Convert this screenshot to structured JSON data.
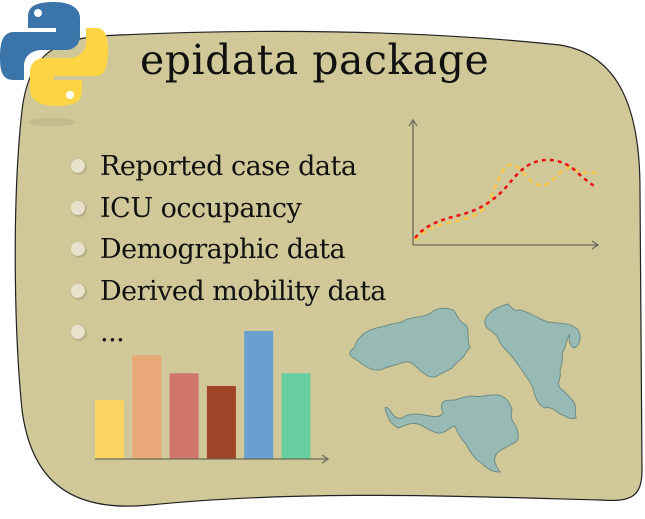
{
  "title": "epidata package",
  "items": [
    {
      "label": "Reported case data"
    },
    {
      "label": "ICU occupancy"
    },
    {
      "label": "Demographic data"
    },
    {
      "label": "Derived mobility data"
    },
    {
      "label": "..."
    }
  ],
  "colors": {
    "background_blob": "#d0c898",
    "blob_outline": "#222222",
    "bullet": "#e8e2cc",
    "map_fill": "#98bab4",
    "map_stroke": "#6f8c86",
    "axis": "#6a6a58",
    "line_red": "#ee1111",
    "line_orange": "#fcc84a",
    "python_blue": "#3a74a8",
    "python_yellow": "#fdd444"
  },
  "icons": [
    "python-logo",
    "line-chart-illustration",
    "bar-chart-illustration",
    "map-regions-illustration"
  ],
  "bar_illustration": {
    "relative_heights": [
      0.46,
      0.81,
      0.67,
      0.57,
      1.0,
      0.67
    ],
    "colors": [
      "#fcd462",
      "#e8a878",
      "#d0766a",
      "#a04428",
      "#6aa0d0",
      "#68d0a0"
    ]
  }
}
